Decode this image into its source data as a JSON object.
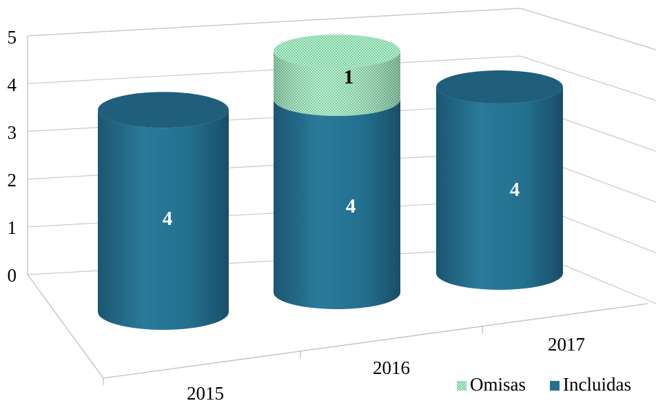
{
  "chart_data": {
    "type": "bar",
    "style": "3d-cylinder-stacked",
    "categories": [
      "2015",
      "2016",
      "2017"
    ],
    "series": [
      {
        "name": "Incluidas",
        "values": [
          4,
          4,
          4
        ],
        "color": "#25708f"
      },
      {
        "name": "Omisas",
        "values": [
          0,
          1,
          0
        ],
        "color": "#5ec98d"
      }
    ],
    "data_labels": [
      {
        "category": "2015",
        "series": "Incluidas",
        "text": "4"
      },
      {
        "category": "2016",
        "series": "Incluidas",
        "text": "4"
      },
      {
        "category": "2016",
        "series": "Omisas",
        "text": "1"
      },
      {
        "category": "2017",
        "series": "Incluidas",
        "text": "4"
      }
    ],
    "y_ticks": [
      "0",
      "1",
      "2",
      "3",
      "4",
      "5"
    ],
    "ylim": [
      0,
      5
    ],
    "title": "",
    "xlabel": "",
    "ylabel": "",
    "grid": true,
    "legend": {
      "position": "bottom-right",
      "entries": [
        "Omisas",
        "Incluidas"
      ]
    }
  }
}
